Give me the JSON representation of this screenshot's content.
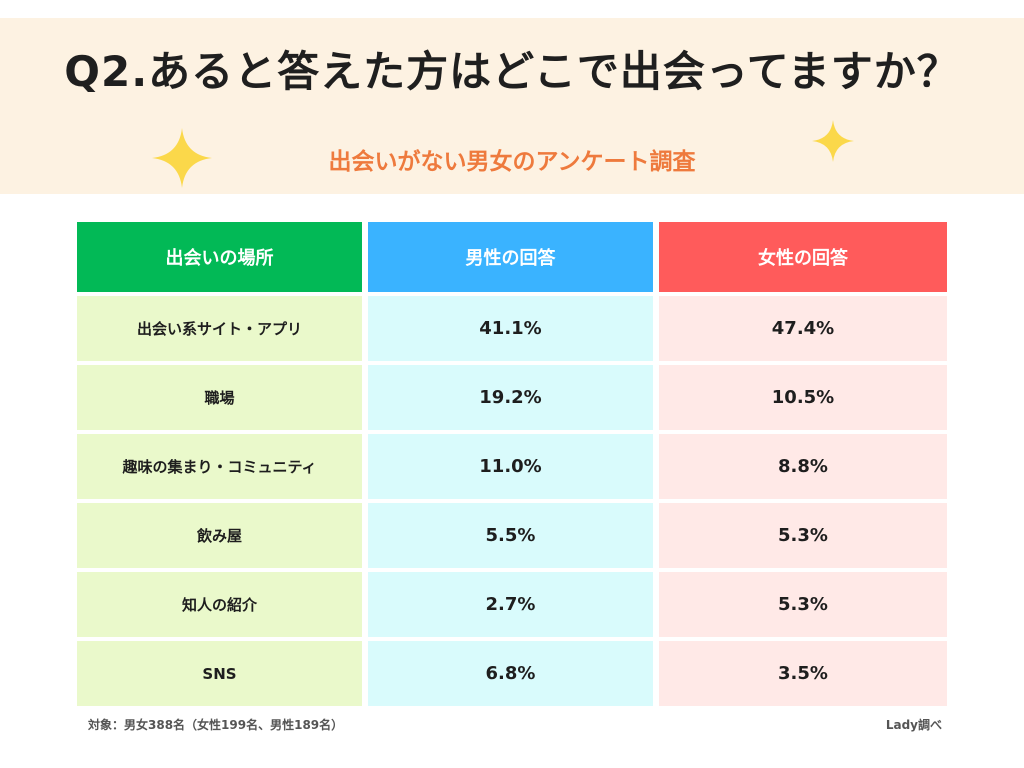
{
  "header": {
    "title": "Q2.あると答えた方はどこで出会ってますか？",
    "subtitle": "出会いがない男女のアンケート調査"
  },
  "colors": {
    "header_bg": "#fdf2e2",
    "accent_orange": "#ee7a3d",
    "place_header": "#02b956",
    "male_header": "#3ab3ff",
    "female_header": "#ff5b5b",
    "place_cell": "#eaf9cb",
    "male_cell": "#d9fbfc",
    "female_cell": "#ffe9e7",
    "sparkle": "#fbd84a"
  },
  "chart_data": {
    "type": "table",
    "columns": [
      "出会いの場所",
      "男性の回答",
      "女性の回答"
    ],
    "rows": [
      {
        "place": "出会い系サイト・アプリ",
        "male": "41.1%",
        "female": "47.4%"
      },
      {
        "place": "職場",
        "male": "19.2%",
        "female": "10.5%"
      },
      {
        "place": "趣味の集まり・コミュニティ",
        "male": "11.0%",
        "female": "8.8%"
      },
      {
        "place": "飲み屋",
        "male": "5.5%",
        "female": "5.3%"
      },
      {
        "place": "知人の紹介",
        "male": "2.7%",
        "female": "5.3%"
      },
      {
        "place": "SNS",
        "male": "6.8%",
        "female": "3.5%"
      }
    ]
  },
  "footer": {
    "note": "対象：男女388名（女性199名、男性189名）",
    "credit": "Lady調べ"
  }
}
